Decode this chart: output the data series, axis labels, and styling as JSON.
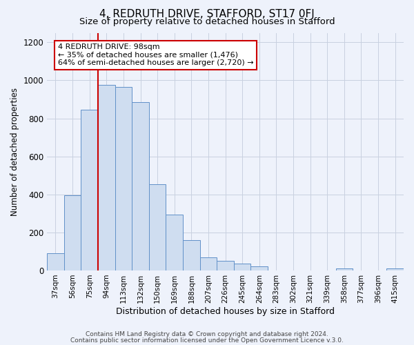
{
  "title1": "4, REDRUTH DRIVE, STAFFORD, ST17 0FJ",
  "title2": "Size of property relative to detached houses in Stafford",
  "xlabel": "Distribution of detached houses by size in Stafford",
  "ylabel": "Number of detached properties",
  "categories": [
    "37sqm",
    "56sqm",
    "75sqm",
    "94sqm",
    "113sqm",
    "132sqm",
    "150sqm",
    "169sqm",
    "188sqm",
    "207sqm",
    "226sqm",
    "245sqm",
    "264sqm",
    "283sqm",
    "302sqm",
    "321sqm",
    "339sqm",
    "358sqm",
    "377sqm",
    "396sqm",
    "415sqm"
  ],
  "values": [
    90,
    395,
    845,
    975,
    965,
    885,
    455,
    295,
    160,
    70,
    50,
    35,
    20,
    0,
    0,
    0,
    0,
    10,
    0,
    0,
    10
  ],
  "bar_color": "#cfddf0",
  "bar_edge_color": "#6090c8",
  "red_line_index": 3,
  "annotation_text": "4 REDRUTH DRIVE: 98sqm\n← 35% of detached houses are smaller (1,476)\n64% of semi-detached houses are larger (2,720) →",
  "annotation_box_color": "#ffffff",
  "annotation_box_edge": "#cc0000",
  "red_line_color": "#cc0000",
  "ylim": [
    0,
    1250
  ],
  "yticks": [
    0,
    200,
    400,
    600,
    800,
    1000,
    1200
  ],
  "footer1": "Contains HM Land Registry data © Crown copyright and database right 2024.",
  "footer2": "Contains public sector information licensed under the Open Government Licence v.3.0.",
  "bg_color": "#eef2fb",
  "plot_bg_color": "#eef2fb",
  "title1_fontsize": 11,
  "title2_fontsize": 9.5,
  "grid_color": "#c8d0e0"
}
